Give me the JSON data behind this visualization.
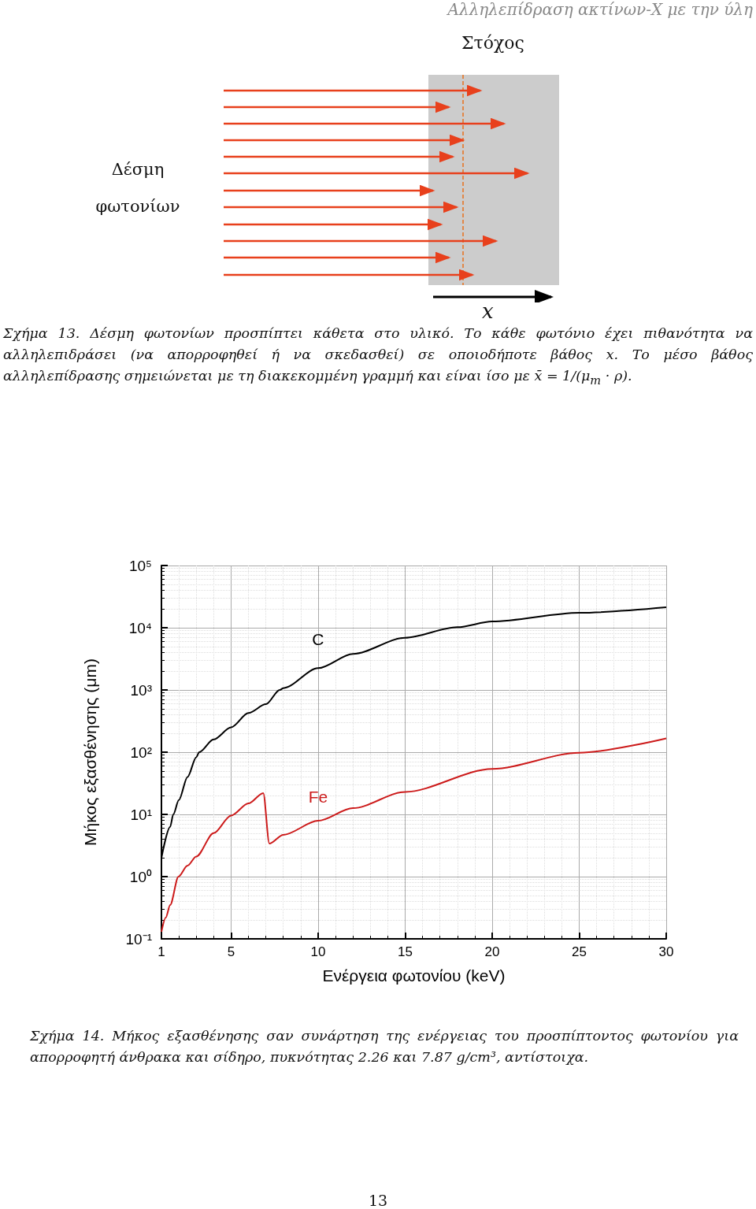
{
  "chart_data": {
    "type": "line",
    "xlabel": "Ενέργεια φωτονίου (keV)",
    "ylabel": "Μήκος εξασθένησης (μm)",
    "annotations": [
      "Αλληλεπίδραση ακτίνων-Χ με την ύλη",
      "Στόχος",
      "Δέσμη φωτονίων",
      "x",
      "Σχήμα 13. Δέσμη φωτονίων προσπίπτει κάθετα στο υλικό. Το κάθε φωτόνιο έχει πιθανότητα να αλληλεπιδράσει (να απορροφηθεί ή να σκεδασθεί) σε οποιοδήποτε βάθος x. Το μέσο βάθος αλληλεπίδρασης σημειώνεται με τη διακεκομμένη γραμμή και είναι ίσο με x̄ = 1/(μ$_{m}$ · ρ).",
      "Σχήμα 14. Μήκος εξασθένησης σαν συνάρτηση της ενέργειας του προσπίπτοντος φωτονίου για απορροφητή άνθρακα και σίδηρο, πυκνότητας 2.26 και 7.87 g/cm³, αντίστοιχα.",
      "13"
    ],
    "series": [
      {
        "name": "C",
        "color": "#000000",
        "x": [
          1,
          1.5,
          1.68,
          2,
          2.5,
          3,
          3.17,
          4,
          5,
          6,
          7,
          7.8,
          8,
          10,
          12,
          15,
          18,
          20,
          25,
          30
        ],
        "values": [
          2,
          6.3,
          10,
          17,
          40,
          83,
          100,
          160,
          250,
          425,
          590,
          1000,
          1070,
          2240,
          3800,
          6900,
          10200,
          12600,
          17400,
          21300
        ]
      },
      {
        "name": "Fe",
        "color": "#cc1a1a",
        "x": [
          1,
          1.25,
          1.5,
          1.98,
          2.5,
          3,
          4,
          5,
          6,
          6.85,
          7.2,
          8,
          10,
          12,
          15,
          20,
          25,
          30
        ],
        "values": [
          0.13,
          0.22,
          0.35,
          1,
          1.5,
          2.1,
          5,
          9.6,
          15,
          22,
          3.4,
          4.7,
          7.9,
          12.6,
          23,
          54,
          98,
          167
        ]
      }
    ],
    "xlim": [
      1,
      30
    ],
    "xticks": [
      1,
      5,
      10,
      15,
      20,
      25,
      30
    ],
    "ylim": [
      0.1,
      100000
    ],
    "yticks": [
      {
        "value": 0.1,
        "label": "10⁻¹"
      },
      {
        "value": 1,
        "label": "10⁰"
      },
      {
        "value": 10,
        "label": "10¹"
      },
      {
        "value": 100,
        "label": "10²"
      },
      {
        "value": 1000,
        "label": "10³"
      },
      {
        "value": 10000,
        "label": "10⁴"
      },
      {
        "value": 100000,
        "label": "10⁵"
      }
    ],
    "log": "y",
    "grid": true,
    "legend": false,
    "marker": "none",
    "line_style": "solid"
  }
}
